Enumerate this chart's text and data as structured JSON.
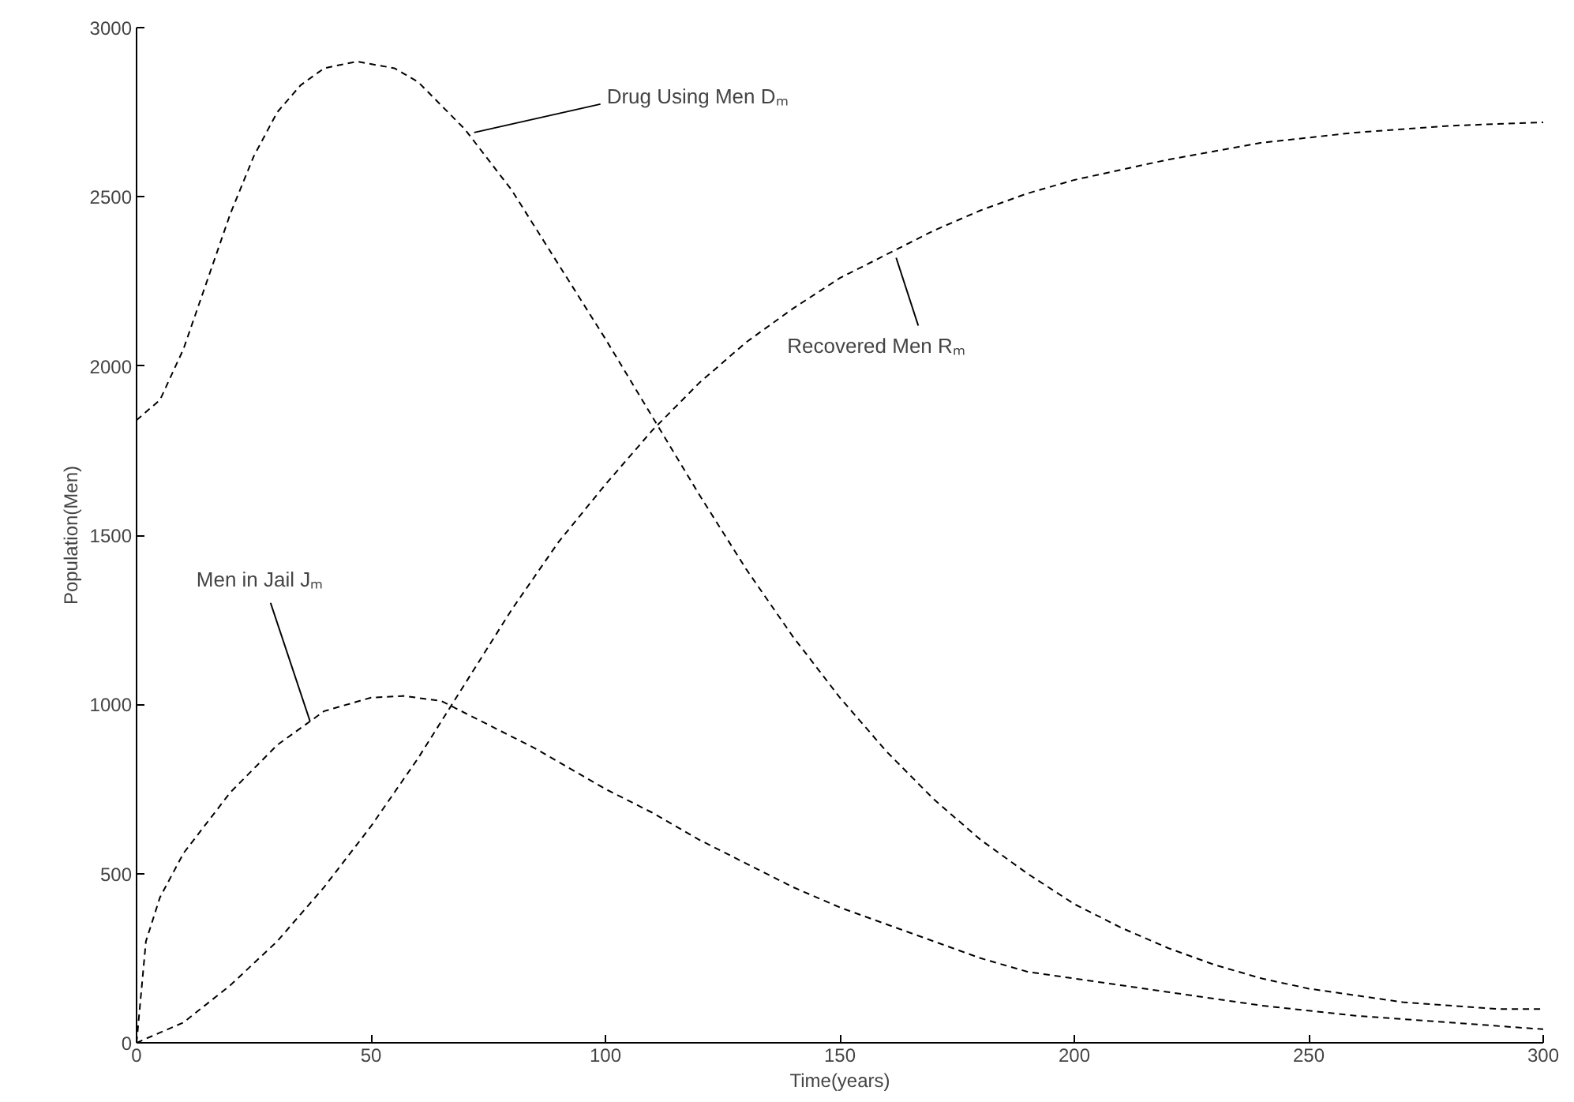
{
  "chart_data": {
    "type": "line",
    "xlabel": "Time(years)",
    "ylabel": "Population(Men)",
    "xlim": [
      0,
      300
    ],
    "ylim": [
      0,
      3000
    ],
    "xticks": [
      0,
      50,
      100,
      150,
      200,
      250,
      300
    ],
    "yticks": [
      0,
      500,
      1000,
      1500,
      2000,
      2500,
      3000
    ],
    "grid": false,
    "line_style": "dashed",
    "marker": "none",
    "series": [
      {
        "color": "#000000",
        "x": [
          0,
          5,
          10,
          15,
          20,
          25,
          30,
          35,
          40,
          47,
          55,
          60,
          70,
          80,
          90,
          100,
          110,
          120,
          130,
          140,
          150,
          160,
          170,
          180,
          190,
          200,
          210,
          220,
          230,
          240,
          250,
          260,
          270,
          280,
          290,
          300
        ],
        "values": [
          1840,
          1900,
          2050,
          2250,
          2450,
          2620,
          2750,
          2830,
          2880,
          2900,
          2880,
          2840,
          2700,
          2520,
          2300,
          2080,
          1850,
          1620,
          1400,
          1200,
          1020,
          860,
          720,
          600,
          500,
          410,
          340,
          280,
          230,
          190,
          160,
          140,
          120,
          110,
          100,
          100
        ]
      },
      {
        "color": "#000000",
        "x": [
          0,
          10,
          20,
          30,
          40,
          50,
          60,
          70,
          80,
          90,
          100,
          110,
          120,
          130,
          140,
          150,
          160,
          170,
          180,
          190,
          200,
          220,
          240,
          260,
          280,
          300
        ],
        "values": [
          0,
          60,
          170,
          300,
          460,
          640,
          840,
          1060,
          1280,
          1480,
          1650,
          1810,
          1950,
          2070,
          2170,
          2260,
          2330,
          2400,
          2460,
          2510,
          2550,
          2610,
          2660,
          2690,
          2710,
          2720
        ]
      },
      {
        "color": "#000000",
        "x": [
          0,
          2,
          5,
          10,
          20,
          30,
          40,
          50,
          57,
          65,
          75,
          85,
          100,
          110,
          120,
          130,
          140,
          150,
          160,
          170,
          180,
          190,
          200,
          220,
          240,
          260,
          280,
          300
        ],
        "values": [
          0,
          300,
          430,
          560,
          740,
          880,
          980,
          1020,
          1025,
          1010,
          940,
          870,
          750,
          680,
          600,
          530,
          460,
          400,
          350,
          300,
          250,
          210,
          190,
          150,
          110,
          80,
          60,
          40
        ]
      }
    ],
    "annotations": [
      {
        "text": "Drug Using Men Dₘ",
        "x": 72,
        "y": 2690
      },
      {
        "text": "Recovered Men Rₘ",
        "x": 162,
        "y": 2320
      },
      {
        "text": "Men in Jail Jₘ",
        "x": 37,
        "y": 950
      }
    ]
  }
}
